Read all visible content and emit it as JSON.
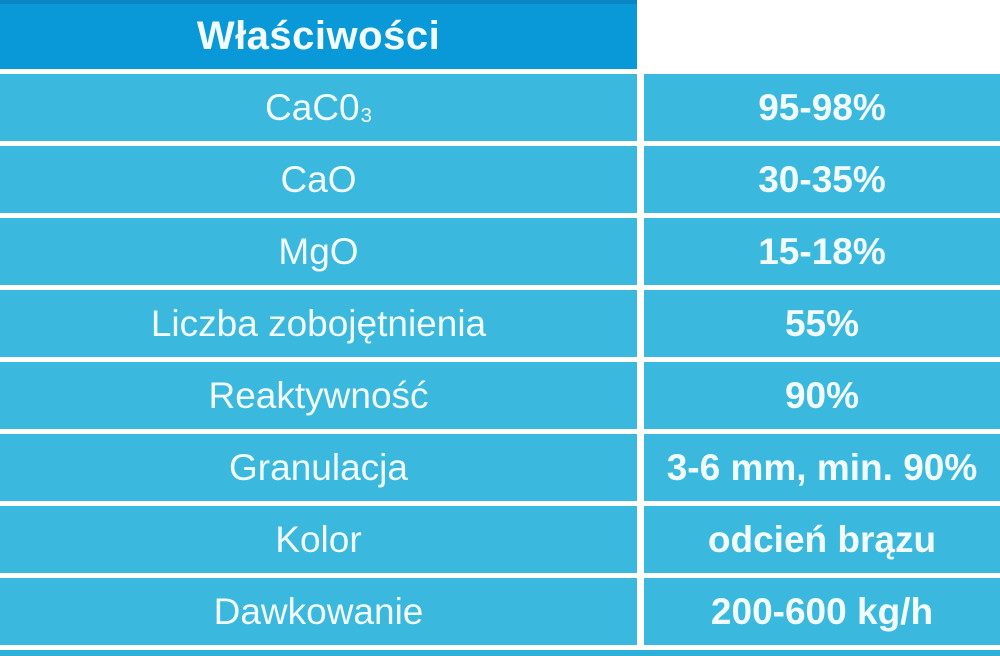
{
  "table": {
    "header": {
      "label": "Właściwości"
    },
    "rows": [
      {
        "label": "CaC0",
        "label_subscript": "3",
        "value": "95-98%"
      },
      {
        "label": "CaO",
        "label_subscript": "",
        "value": "30-35%"
      },
      {
        "label": "MgO",
        "label_subscript": "",
        "value": "15-18%"
      },
      {
        "label": "Liczba zobojętnienia",
        "label_subscript": "",
        "value": "55%"
      },
      {
        "label": "Reaktywność",
        "label_subscript": "",
        "value": "90%"
      },
      {
        "label": "Granulacja",
        "label_subscript": "",
        "value": "3-6 mm, min. 90%"
      },
      {
        "label": "Kolor",
        "label_subscript": "",
        "value": "odcień brązu"
      },
      {
        "label": "Dawkowanie",
        "label_subscript": "",
        "value": "200-600 kg/h"
      }
    ],
    "colors": {
      "header_blue": "#0999d9",
      "header_top_edge": "#0a86c4",
      "row_cyan": "#3ab8dd",
      "bottom_strip": "#2fb0d8",
      "text": "#f2fcff",
      "gap_white": "#ffffff"
    }
  }
}
